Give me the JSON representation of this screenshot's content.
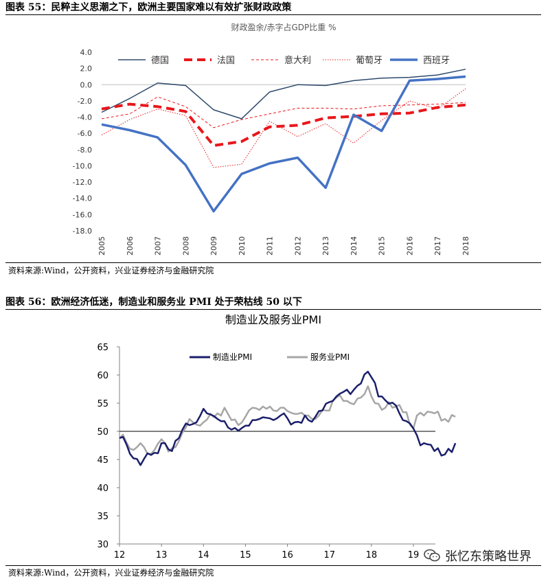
{
  "fig1": {
    "caption": "图表 55：民粹主义思潮之下，欧洲主要国家难以有效扩张财政政策",
    "source": "资料来源:Wind，公开资料，兴业证券经济与金融研究院"
  },
  "fig2": {
    "caption": "图表 56：欧洲经济低迷，制造业和服务业 PMI 处于荣枯线 50 以下",
    "source": "资料来源:Wind，公开资料，兴业证券经济与金融研究院"
  },
  "watermark": {
    "text": "张忆东策略世界",
    "icon": "wechat-icon"
  },
  "chart_data": [
    {
      "type": "line",
      "title": "财政盈余/赤字占GDP比重 %",
      "x": [
        "2005",
        "2006",
        "2007",
        "2008",
        "2009",
        "2010",
        "2011",
        "2012",
        "2013",
        "2014",
        "2015",
        "2016",
        "2017",
        "2018"
      ],
      "ylim": [
        -18,
        4
      ],
      "yticks": [
        "4.0",
        "2.0",
        "0.0",
        "-2.0",
        "-4.0",
        "-6.0",
        "-8.0",
        "-10.0",
        "-12.0",
        "-14.0",
        "-16.0",
        "-18.0"
      ],
      "legend_position": "top",
      "grid": false,
      "series": [
        {
          "name": "德国",
          "color": "#2e4a6b",
          "style": "solid-thin",
          "values": [
            -3.4,
            -1.7,
            0.2,
            -0.1,
            -3.1,
            -4.2,
            -0.9,
            0.0,
            -0.1,
            0.5,
            0.8,
            0.9,
            1.2,
            1.9
          ]
        },
        {
          "name": "法国",
          "color": "#e8171c",
          "style": "dashed-thick",
          "values": [
            -3.0,
            -2.4,
            -2.7,
            -3.3,
            -7.5,
            -7.0,
            -5.2,
            -5.0,
            -4.1,
            -3.9,
            -3.6,
            -3.5,
            -2.8,
            -2.5
          ]
        },
        {
          "name": "意大利",
          "color": "#e8171c",
          "style": "dashed-thin",
          "values": [
            -4.2,
            -3.6,
            -1.5,
            -2.7,
            -5.3,
            -4.3,
            -3.6,
            -2.9,
            -2.9,
            -3.0,
            -2.6,
            -2.5,
            -2.4,
            -2.2
          ]
        },
        {
          "name": "葡萄牙",
          "color": "#e8171c",
          "style": "dotted",
          "values": [
            -6.2,
            -4.3,
            -3.0,
            -3.8,
            -10.2,
            -9.8,
            -4.5,
            -6.4,
            -4.8,
            -7.2,
            -4.4,
            -2.0,
            -3.0,
            -0.5
          ]
        },
        {
          "name": "西班牙",
          "color": "#4472c4",
          "style": "solid-thick",
          "values": [
            -4.9,
            -5.6,
            -6.5,
            -9.9,
            -15.6,
            -11.0,
            -9.7,
            -9.0,
            -12.7,
            -3.7,
            -5.7,
            0.5,
            0.7,
            1.0
          ]
        }
      ]
    },
    {
      "type": "line",
      "title": "制造业及服务业PMI",
      "xticks": [
        "12",
        "13",
        "14",
        "15",
        "16",
        "17",
        "18",
        "19"
      ],
      "x_start_year": 12,
      "ylim": [
        30,
        65
      ],
      "yticks": [
        "65",
        "60",
        "55",
        "50",
        "45",
        "40",
        "35",
        "30"
      ],
      "reference_line": 50,
      "legend_position": "top",
      "grid": false,
      "series": [
        {
          "name": "制造业PMI",
          "color": "#1b1f6b",
          "values": [
            48.8,
            49.0,
            47.7,
            46.0,
            45.2,
            45.1,
            44.0,
            45.1,
            46.1,
            45.8,
            46.2,
            46.1,
            47.9,
            47.9,
            46.8,
            46.5,
            48.3,
            48.8,
            50.3,
            51.4,
            51.1,
            51.3,
            51.6,
            52.7,
            54.0,
            53.2,
            53.0,
            52.7,
            52.2,
            51.8,
            51.8,
            50.7,
            50.3,
            50.6,
            50.1,
            50.6,
            51.0,
            51.0,
            52.0,
            52.0,
            52.2,
            52.5,
            52.4,
            52.3,
            52.0,
            52.3,
            52.8,
            53.2,
            52.3,
            51.2,
            51.6,
            51.7,
            51.5,
            52.8,
            52.0,
            51.7,
            52.6,
            53.6,
            53.7,
            54.9,
            55.2,
            55.4,
            56.2,
            56.7,
            57.0,
            57.4,
            56.6,
            57.4,
            58.1,
            58.5,
            60.1,
            60.6,
            59.6,
            58.6,
            56.2,
            56.2,
            55.5,
            54.9,
            55.1,
            54.6,
            53.2,
            52.0,
            51.8,
            51.4,
            50.5,
            49.3,
            47.5,
            47.9,
            47.7,
            47.6,
            46.5,
            47.0,
            45.7,
            45.9,
            46.9,
            46.3,
            47.9
          ]
        },
        {
          "name": "服务业PMI",
          "color": "#a6a6a6",
          "values": [
            48.8,
            49.4,
            48.0,
            46.9,
            46.7,
            47.2,
            47.9,
            47.2,
            46.0,
            46.0,
            46.7,
            47.8,
            48.6,
            47.9,
            46.4,
            47.0,
            47.2,
            48.3,
            49.8,
            50.7,
            52.2,
            51.6,
            51.2,
            51.0,
            51.6,
            52.1,
            53.1,
            52.5,
            53.2,
            52.8,
            54.2,
            53.1,
            52.0,
            52.1,
            51.1,
            51.6,
            52.6,
            53.7,
            54.2,
            54.1,
            53.8,
            54.4,
            54.0,
            54.4,
            53.7,
            53.6,
            54.2,
            54.2,
            53.6,
            53.3,
            53.1,
            53.1,
            53.3,
            52.8,
            52.8,
            52.2,
            52.2,
            52.8,
            53.8,
            53.7,
            53.7,
            55.5,
            56.0,
            56.4,
            55.4,
            55.4,
            55.0,
            54.8,
            55.8,
            56.0,
            56.6,
            58.0,
            56.2,
            55.0,
            54.9,
            53.8,
            54.2,
            55.2,
            54.2,
            54.4,
            54.7,
            53.4,
            53.4,
            51.2,
            50.5,
            52.8,
            53.3,
            52.8,
            53.5,
            53.4,
            53.2,
            53.5,
            51.9,
            52.2,
            51.7,
            52.9,
            52.6
          ]
        }
      ]
    }
  ]
}
